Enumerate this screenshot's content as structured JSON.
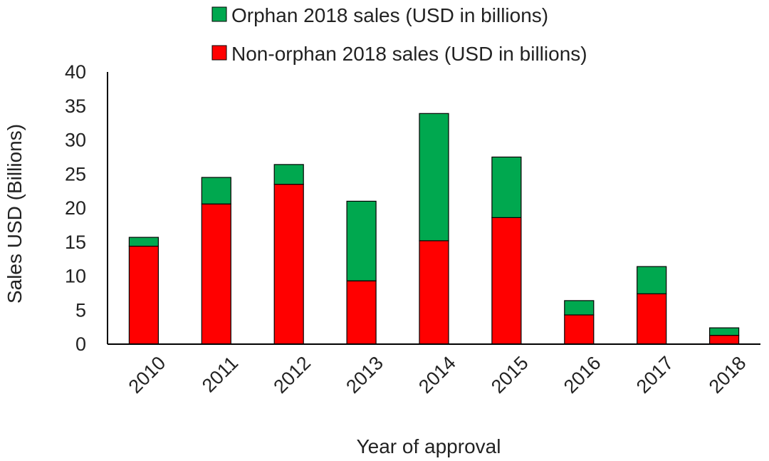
{
  "chart_data": {
    "type": "bar",
    "stacked": true,
    "title": "",
    "xlabel": "Year of approval",
    "ylabel": "Sales USD (Billions)",
    "ylim": [
      0,
      40
    ],
    "yticks": [
      0,
      5,
      10,
      15,
      20,
      25,
      30,
      35,
      40
    ],
    "grid": false,
    "legend_position": "top",
    "categories": [
      "2010",
      "2011",
      "2012",
      "2013",
      "2014",
      "2015",
      "2016",
      "2017",
      "2018"
    ],
    "series": [
      {
        "name": "Non-orphan 2018 sales (USD in billions)",
        "color": "#ff0000",
        "values": [
          14.4,
          20.6,
          23.5,
          9.3,
          15.2,
          18.6,
          4.3,
          7.4,
          1.3
        ]
      },
      {
        "name": "Orphan 2018 sales (USD in billions)",
        "color": "#00a84f",
        "values": [
          1.3,
          3.9,
          2.9,
          11.7,
          18.7,
          8.9,
          2.1,
          4.0,
          1.1
        ]
      }
    ],
    "legend_order": [
      1,
      0
    ]
  }
}
